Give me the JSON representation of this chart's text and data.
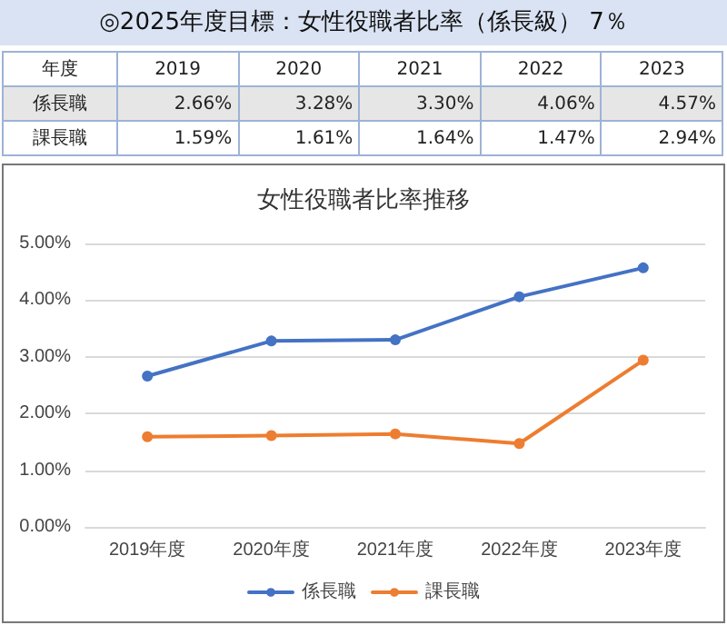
{
  "chart_data": {
    "type": "line",
    "title": "◎2025年度目標：女性役職者比率（係長級） 7％",
    "subtitle": "女性役職者比率推移",
    "annotations": [
      "年度",
      "2019",
      "2020",
      "2021",
      "2022",
      "2023"
    ],
    "categories": [
      "2019年度",
      "2020年度",
      "2021年度",
      "2022年度",
      "2023年度"
    ],
    "series": [
      {
        "name": "係長職",
        "color": "#4472c4",
        "values": [
          2.66,
          3.28,
          3.3,
          4.06,
          4.57
        ],
        "value_labels": [
          "2.66%",
          "3.28%",
          "3.30%",
          "4.06%",
          "4.57%"
        ]
      },
      {
        "name": "課長職",
        "color": "#ed7d31",
        "values": [
          1.59,
          1.61,
          1.64,
          1.47,
          2.94
        ],
        "value_labels": [
          "1.59%",
          "1.61%",
          "1.64%",
          "1.47%",
          "2.94%"
        ]
      }
    ],
    "ylim": [
      0,
      5
    ],
    "yticks": [
      {
        "value": 0,
        "label": "0.00%"
      },
      {
        "value": 1,
        "label": "1.00%"
      },
      {
        "value": 2,
        "label": "2.00%"
      },
      {
        "value": 3,
        "label": "3.00%"
      },
      {
        "value": 4,
        "label": "4.00%"
      },
      {
        "value": 5,
        "label": "5.00%"
      }
    ],
    "grid": "y",
    "legend": "bottom",
    "marker": "circle",
    "line_style": "solid"
  }
}
